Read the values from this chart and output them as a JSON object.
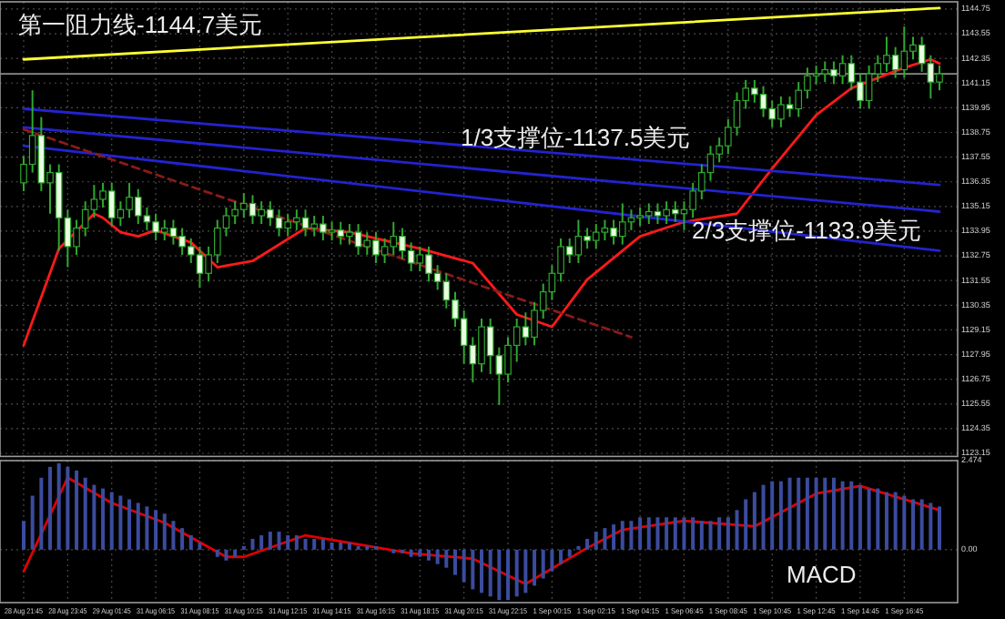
{
  "chart_data": [
    {
      "type": "candlestick",
      "color": "#2fa82f",
      "grid": true,
      "tick_labels": "y",
      "ylim": [
        1123.0,
        1145.1
      ],
      "yticks": [
        1123.15,
        1124.35,
        1125.55,
        1126.75,
        1127.95,
        1129.15,
        1130.35,
        1131.55,
        1132.75,
        1133.95,
        1135.15,
        1136.35,
        1137.55,
        1138.75,
        1139.95,
        1141.15,
        1142.35,
        1143.55,
        1144.75
      ],
      "ohlc": [
        [
          1136.3,
          1137.6,
          1135.9,
          1137.2
        ],
        [
          1137.2,
          1140.8,
          1136.8,
          1138.6
        ],
        [
          1138.6,
          1139.5,
          1135.9,
          1136.3
        ],
        [
          1136.3,
          1137.2,
          1134.8,
          1136.8
        ],
        [
          1136.8,
          1137.2,
          1133.0,
          1134.6
        ],
        [
          1134.6,
          1135.0,
          1132.2,
          1133.2
        ],
        [
          1133.2,
          1134.5,
          1132.8,
          1134.1
        ],
        [
          1134.1,
          1135.4,
          1133.7,
          1135.0
        ],
        [
          1135.0,
          1136.2,
          1134.6,
          1135.5
        ],
        [
          1135.5,
          1136.3,
          1135.1,
          1135.9
        ],
        [
          1135.9,
          1136.3,
          1134.2,
          1134.6
        ],
        [
          1134.6,
          1135.4,
          1134.2,
          1135.0
        ],
        [
          1135.0,
          1136.3,
          1134.6,
          1135.6
        ],
        [
          1135.6,
          1136.0,
          1134.3,
          1134.7
        ],
        [
          1134.7,
          1135.1,
          1134.0,
          1134.4
        ],
        [
          1134.4,
          1134.8,
          1133.5,
          1133.9
        ],
        [
          1133.9,
          1134.5,
          1133.5,
          1134.1
        ],
        [
          1134.1,
          1134.5,
          1133.3,
          1133.7
        ],
        [
          1133.7,
          1134.1,
          1132.8,
          1133.2
        ],
        [
          1133.2,
          1133.6,
          1132.4,
          1132.8
        ],
        [
          1132.8,
          1133.2,
          1131.2,
          1131.9
        ],
        [
          1131.9,
          1133.2,
          1131.5,
          1132.8
        ],
        [
          1132.8,
          1134.5,
          1132.4,
          1134.1
        ],
        [
          1134.1,
          1135.1,
          1133.7,
          1134.7
        ],
        [
          1134.7,
          1135.4,
          1134.3,
          1135.0
        ],
        [
          1135.0,
          1135.8,
          1134.6,
          1135.3
        ],
        [
          1135.3,
          1135.7,
          1134.3,
          1134.7
        ],
        [
          1134.7,
          1135.4,
          1134.3,
          1135.0
        ],
        [
          1135.0,
          1135.4,
          1134.2,
          1134.6
        ],
        [
          1134.6,
          1135.0,
          1133.7,
          1134.1
        ],
        [
          1134.1,
          1134.8,
          1133.7,
          1134.4
        ],
        [
          1134.4,
          1135.0,
          1134.0,
          1134.6
        ],
        [
          1134.6,
          1135.0,
          1133.7,
          1134.1
        ],
        [
          1134.1,
          1134.7,
          1133.7,
          1134.3
        ],
        [
          1134.3,
          1134.7,
          1133.5,
          1133.9
        ],
        [
          1133.9,
          1134.4,
          1133.5,
          1134.0
        ],
        [
          1134.0,
          1134.4,
          1133.3,
          1133.7
        ],
        [
          1133.7,
          1134.3,
          1133.3,
          1133.9
        ],
        [
          1133.9,
          1134.3,
          1132.8,
          1133.2
        ],
        [
          1133.2,
          1133.9,
          1132.8,
          1133.5
        ],
        [
          1133.5,
          1133.9,
          1132.4,
          1132.8
        ],
        [
          1132.8,
          1133.6,
          1132.4,
          1133.2
        ],
        [
          1133.2,
          1134.4,
          1132.8,
          1133.7
        ],
        [
          1133.7,
          1134.1,
          1132.6,
          1133.0
        ],
        [
          1133.0,
          1133.4,
          1132.0,
          1132.4
        ],
        [
          1132.4,
          1133.2,
          1132.0,
          1132.8
        ],
        [
          1132.8,
          1133.2,
          1131.5,
          1131.9
        ],
        [
          1131.9,
          1132.3,
          1131.1,
          1131.5
        ],
        [
          1131.5,
          1131.9,
          1130.2,
          1130.6
        ],
        [
          1130.6,
          1131.0,
          1129.3,
          1129.7
        ],
        [
          1129.7,
          1130.1,
          1127.5,
          1128.4
        ],
        [
          1128.4,
          1128.8,
          1126.6,
          1127.5
        ],
        [
          1127.5,
          1129.7,
          1127.1,
          1129.3
        ],
        [
          1129.3,
          1129.7,
          1127.0,
          1127.9
        ],
        [
          1127.9,
          1128.3,
          1125.5,
          1127.0
        ],
        [
          1127.0,
          1128.8,
          1126.6,
          1128.4
        ],
        [
          1128.4,
          1129.7,
          1127.6,
          1129.3
        ],
        [
          1129.3,
          1130.0,
          1128.4,
          1128.8
        ],
        [
          1128.8,
          1130.5,
          1128.4,
          1130.1
        ],
        [
          1130.1,
          1131.4,
          1129.7,
          1131.0
        ],
        [
          1131.0,
          1132.3,
          1130.6,
          1131.9
        ],
        [
          1131.9,
          1133.6,
          1131.5,
          1133.2
        ],
        [
          1133.2,
          1133.6,
          1132.4,
          1132.8
        ],
        [
          1132.8,
          1134.5,
          1132.4,
          1133.7
        ],
        [
          1133.7,
          1134.1,
          1133.1,
          1133.5
        ],
        [
          1133.5,
          1134.3,
          1133.1,
          1133.9
        ],
        [
          1133.9,
          1134.5,
          1133.5,
          1134.1
        ],
        [
          1134.1,
          1134.5,
          1133.3,
          1133.7
        ],
        [
          1133.7,
          1135.3,
          1133.3,
          1134.4
        ],
        [
          1134.4,
          1135.0,
          1134.0,
          1134.6
        ],
        [
          1134.6,
          1135.1,
          1134.2,
          1134.7
        ],
        [
          1134.7,
          1135.3,
          1134.3,
          1134.9
        ],
        [
          1134.9,
          1135.3,
          1134.3,
          1134.7
        ],
        [
          1134.7,
          1135.4,
          1134.3,
          1135.0
        ],
        [
          1135.0,
          1135.4,
          1134.4,
          1134.8
        ],
        [
          1134.8,
          1135.4,
          1134.0,
          1135.0
        ],
        [
          1135.0,
          1136.3,
          1134.6,
          1135.9
        ],
        [
          1135.9,
          1137.2,
          1135.5,
          1136.8
        ],
        [
          1136.8,
          1138.1,
          1136.4,
          1137.7
        ],
        [
          1137.7,
          1138.5,
          1137.3,
          1138.1
        ],
        [
          1138.1,
          1139.4,
          1137.7,
          1139.0
        ],
        [
          1139.0,
          1140.7,
          1138.6,
          1140.3
        ],
        [
          1140.3,
          1141.3,
          1139.9,
          1140.9
        ],
        [
          1140.9,
          1141.3,
          1140.2,
          1140.6
        ],
        [
          1140.6,
          1141.0,
          1139.5,
          1139.9
        ],
        [
          1139.9,
          1140.3,
          1139.0,
          1139.4
        ],
        [
          1139.4,
          1140.5,
          1139.0,
          1140.1
        ],
        [
          1140.1,
          1140.5,
          1139.5,
          1139.9
        ],
        [
          1139.9,
          1141.2,
          1139.5,
          1140.8
        ],
        [
          1140.8,
          1141.9,
          1140.4,
          1141.5
        ],
        [
          1141.5,
          1142.0,
          1141.1,
          1141.6
        ],
        [
          1141.6,
          1142.2,
          1141.2,
          1141.8
        ],
        [
          1141.8,
          1142.2,
          1141.1,
          1141.5
        ],
        [
          1141.5,
          1142.5,
          1141.1,
          1142.1
        ],
        [
          1142.1,
          1142.5,
          1140.8,
          1141.2
        ],
        [
          1141.2,
          1141.6,
          1139.9,
          1140.3
        ],
        [
          1140.3,
          1142.0,
          1139.9,
          1141.6
        ],
        [
          1141.6,
          1142.5,
          1141.2,
          1142.1
        ],
        [
          1142.1,
          1143.4,
          1141.7,
          1142.5
        ],
        [
          1142.5,
          1142.9,
          1141.4,
          1141.8
        ],
        [
          1141.8,
          1143.9,
          1141.4,
          1142.7
        ],
        [
          1142.7,
          1143.4,
          1142.3,
          1143.0
        ],
        [
          1143.0,
          1143.4,
          1141.7,
          1142.1
        ],
        [
          1142.1,
          1142.5,
          1140.4,
          1141.2
        ],
        [
          1141.2,
          1142.0,
          1140.8,
          1141.6
        ]
      ],
      "series": [
        {
          "type": "line",
          "color": "#ff1a1a",
          "values": [
            1128.4,
            null,
            null,
            null,
            1133.1,
            null,
            null,
            null,
            1134.8,
            1134.6,
            null,
            1133.9,
            null,
            1133.7,
            null,
            1134.0,
            null,
            null,
            null,
            1133.4,
            null,
            null,
            1132.2,
            null,
            null,
            null,
            1132.5,
            null,
            null,
            null,
            null,
            null,
            1134.1,
            null,
            null,
            null,
            null,
            1133.9,
            null,
            null,
            null,
            null,
            null,
            null,
            null,
            1133.1,
            null,
            null,
            null,
            null,
            null,
            1132.4,
            null,
            null,
            null,
            null,
            1129.9,
            null,
            null,
            null,
            1129.3,
            null,
            null,
            null,
            1131.6,
            null,
            null,
            null,
            null,
            null,
            1133.7,
            null,
            null,
            null,
            null,
            1134.4,
            null,
            null,
            null,
            null,
            null,
            1134.8,
            null,
            null,
            null,
            1137.0,
            null,
            null,
            null,
            null,
            1139.6,
            null,
            null,
            null,
            1140.9,
            null,
            null,
            null,
            null,
            null,
            1141.9,
            null,
            null,
            1142.3,
            1142.1
          ]
        },
        {
          "type": "line",
          "color": "#ffff33",
          "values": [
            1142.3,
            null,
            null,
            null,
            null,
            null,
            null,
            null,
            null,
            null,
            null,
            null,
            null,
            null,
            null,
            null,
            null,
            null,
            null,
            null,
            null,
            null,
            null,
            null,
            null,
            null,
            null,
            null,
            null,
            null,
            null,
            null,
            null,
            null,
            null,
            null,
            null,
            null,
            null,
            null,
            null,
            null,
            null,
            null,
            null,
            null,
            null,
            null,
            null,
            null,
            null,
            null,
            null,
            null,
            null,
            null,
            null,
            null,
            null,
            null,
            null,
            null,
            null,
            null,
            null,
            null,
            null,
            null,
            null,
            null,
            null,
            null,
            null,
            null,
            null,
            null,
            null,
            null,
            null,
            null,
            null,
            null,
            null,
            null,
            null,
            null,
            null,
            null,
            null,
            null,
            null,
            null,
            null,
            null,
            null,
            null,
            null,
            null,
            null,
            null,
            null,
            null,
            null,
            null,
            1144.8
          ]
        },
        {
          "type": "line",
          "color": "#2323d0",
          "values": [
            1139.9,
            null,
            null,
            null,
            null,
            null,
            null,
            null,
            null,
            null,
            null,
            null,
            null,
            null,
            null,
            null,
            null,
            null,
            null,
            null,
            null,
            null,
            null,
            null,
            null,
            null,
            null,
            null,
            null,
            null,
            null,
            null,
            null,
            null,
            null,
            null,
            null,
            null,
            null,
            null,
            null,
            null,
            null,
            null,
            null,
            null,
            null,
            null,
            null,
            null,
            null,
            null,
            null,
            null,
            null,
            null,
            null,
            null,
            null,
            null,
            null,
            null,
            null,
            null,
            null,
            null,
            null,
            null,
            null,
            null,
            null,
            null,
            null,
            null,
            null,
            null,
            null,
            null,
            null,
            null,
            null,
            null,
            null,
            null,
            null,
            null,
            null,
            null,
            null,
            null,
            null,
            null,
            null,
            null,
            null,
            null,
            null,
            null,
            null,
            null,
            null,
            null,
            null,
            null,
            1136.2
          ]
        },
        {
          "type": "line",
          "color": "#2323d0",
          "values": [
            1139.0,
            null,
            null,
            null,
            null,
            null,
            null,
            null,
            null,
            null,
            null,
            null,
            null,
            null,
            null,
            null,
            null,
            null,
            null,
            null,
            null,
            null,
            null,
            null,
            null,
            null,
            null,
            null,
            null,
            null,
            null,
            null,
            null,
            null,
            null,
            null,
            null,
            null,
            null,
            null,
            null,
            null,
            null,
            null,
            null,
            null,
            null,
            null,
            null,
            null,
            null,
            null,
            null,
            null,
            null,
            null,
            null,
            null,
            null,
            null,
            null,
            null,
            null,
            null,
            null,
            null,
            null,
            null,
            null,
            null,
            null,
            null,
            null,
            null,
            null,
            null,
            null,
            null,
            null,
            null,
            null,
            null,
            null,
            null,
            null,
            null,
            null,
            null,
            null,
            null,
            null,
            null,
            null,
            null,
            null,
            null,
            null,
            null,
            null,
            null,
            null,
            null,
            null,
            null,
            1134.9
          ]
        },
        {
          "type": "line",
          "color": "#2323d0",
          "values": [
            1138.1,
            null,
            null,
            null,
            null,
            null,
            null,
            null,
            null,
            null,
            null,
            null,
            null,
            null,
            null,
            null,
            null,
            null,
            null,
            null,
            null,
            null,
            null,
            null,
            null,
            null,
            null,
            null,
            null,
            null,
            null,
            null,
            null,
            null,
            null,
            null,
            null,
            null,
            null,
            null,
            null,
            null,
            null,
            null,
            null,
            null,
            null,
            null,
            null,
            null,
            null,
            null,
            null,
            null,
            null,
            null,
            null,
            null,
            null,
            null,
            null,
            null,
            null,
            null,
            null,
            null,
            null,
            null,
            null,
            null,
            null,
            null,
            null,
            null,
            null,
            null,
            null,
            null,
            null,
            null,
            null,
            null,
            null,
            null,
            null,
            null,
            null,
            null,
            null,
            null,
            null,
            null,
            null,
            null,
            null,
            null,
            null,
            null,
            null,
            null,
            null,
            null,
            null,
            null,
            1133.0
          ]
        },
        {
          "type": "line",
          "color": "#8b1a1a",
          "line_style": "dashed",
          "values": [
            1138.9,
            null,
            null,
            null,
            null,
            null,
            null,
            null,
            null,
            null,
            null,
            null,
            null,
            null,
            null,
            null,
            null,
            null,
            null,
            null,
            null,
            null,
            null,
            null,
            null,
            null,
            null,
            null,
            null,
            null,
            null,
            null,
            null,
            null,
            null,
            null,
            null,
            null,
            null,
            null,
            null,
            null,
            null,
            null,
            null,
            null,
            null,
            null,
            null,
            null,
            null,
            null,
            null,
            null,
            null,
            null,
            null,
            null,
            null,
            null,
            null,
            null,
            null,
            null,
            null,
            null,
            null,
            null,
            null,
            1128.8,
            null,
            null,
            null,
            null,
            null,
            null,
            null,
            null,
            null,
            null,
            null,
            null,
            null,
            null,
            null,
            null,
            null,
            null,
            null,
            null,
            null,
            null,
            null,
            null,
            null,
            null,
            null,
            null,
            null,
            null,
            null,
            null,
            null,
            null,
            null
          ]
        }
      ],
      "ref_lines": [
        {
          "axis": "y",
          "value": 1141.6,
          "color": "#8a8a8a"
        }
      ],
      "annotations": [
        "第一阻力线-1144.7美元",
        "1/3支撑位-1137.5美元",
        "2/3支撑位-1133.9美元"
      ]
    },
    {
      "type": "bar",
      "grid": true,
      "ylim": [
        -1.47,
        2.474
      ],
      "categories": [
        "28 Aug 21:45",
        null,
        null,
        null,
        null,
        "28 Aug 23:45",
        null,
        null,
        null,
        null,
        "29 Aug 01:45",
        null,
        null,
        null,
        null,
        "31 Aug 06:15",
        null,
        null,
        null,
        null,
        "31 Aug 08:15",
        null,
        null,
        null,
        null,
        "31 Aug 10:15",
        null,
        null,
        null,
        null,
        "31 Aug 12:15",
        null,
        null,
        null,
        null,
        "31 Aug 14:15",
        null,
        null,
        null,
        null,
        "31 Aug 16:15",
        null,
        null,
        null,
        null,
        "31 Aug 18:15",
        null,
        null,
        null,
        null,
        "31 Aug 20:15",
        null,
        null,
        null,
        null,
        "31 Aug 22:15",
        null,
        null,
        null,
        null,
        "1 Sep 00:15",
        null,
        null,
        null,
        null,
        "1 Sep 02:15",
        null,
        null,
        null,
        null,
        "1 Sep 04:15",
        null,
        null,
        null,
        null,
        "1 Sep 06:45",
        null,
        null,
        null,
        null,
        "1 Sep 08:45",
        null,
        null,
        null,
        null,
        "1 Sep 10:45",
        null,
        null,
        null,
        null,
        "1 Sep 12:45",
        null,
        null,
        null,
        null,
        "1 Sep 14:45",
        null,
        null,
        null,
        null,
        "1 Sep 16:45",
        null,
        null,
        null,
        null
      ],
      "yticks": [
        2.474,
        {
          "value": 0,
          "label": "0.00"
        }
      ],
      "series": [
        {
          "type": "bar",
          "color": "#3b4c9e",
          "values": [
            0.8,
            1.5,
            2.0,
            2.3,
            2.4,
            2.3,
            2.2,
            2.0,
            1.8,
            1.7,
            1.6,
            1.5,
            1.4,
            1.3,
            1.2,
            1.1,
            1.0,
            0.8,
            0.6,
            0.4,
            0.2,
            0.0,
            -0.2,
            -0.3,
            -0.2,
            0.1,
            0.3,
            0.4,
            0.5,
            0.5,
            0.4,
            0.4,
            0.3,
            0.3,
            0.3,
            0.2,
            0.2,
            0.2,
            0.1,
            0.1,
            0.1,
            0.0,
            -0.1,
            -0.1,
            -0.2,
            -0.2,
            -0.3,
            -0.4,
            -0.5,
            -0.7,
            -0.9,
            -1.1,
            -1.2,
            -1.3,
            -1.4,
            -1.4,
            -1.3,
            -1.2,
            -1.0,
            -0.8,
            -0.6,
            -0.4,
            -0.2,
            0.1,
            0.3,
            0.5,
            0.6,
            0.7,
            0.8,
            0.8,
            0.9,
            0.9,
            0.9,
            0.9,
            0.9,
            0.9,
            0.9,
            0.8,
            0.8,
            0.9,
            0.9,
            1.1,
            1.4,
            1.6,
            1.8,
            1.9,
            1.9,
            2.0,
            2.0,
            2.0,
            2.0,
            2.0,
            2.0,
            1.9,
            1.9,
            1.8,
            1.7,
            1.7,
            1.6,
            1.6,
            1.5,
            1.4,
            1.4,
            1.3,
            1.2
          ]
        },
        {
          "type": "line",
          "color": "#e00000",
          "values": [
            -0.6,
            null,
            null,
            null,
            null,
            2.0,
            null,
            null,
            null,
            null,
            1.3,
            null,
            null,
            null,
            null,
            null,
            0.75,
            null,
            null,
            null,
            null,
            null,
            null,
            -0.2,
            null,
            -0.2,
            null,
            null,
            null,
            null,
            null,
            null,
            0.4,
            null,
            null,
            null,
            null,
            null,
            null,
            null,
            null,
            null,
            null,
            null,
            -0.1,
            null,
            null,
            null,
            null,
            null,
            null,
            -0.25,
            null,
            null,
            null,
            null,
            null,
            -0.95,
            null,
            null,
            null,
            null,
            null,
            null,
            0.05,
            null,
            null,
            null,
            0.55,
            null,
            null,
            null,
            null,
            null,
            null,
            0.8,
            null,
            null,
            null,
            null,
            null,
            null,
            null,
            0.65,
            null,
            null,
            null,
            null,
            null,
            null,
            1.56,
            null,
            null,
            null,
            null,
            1.77,
            null,
            null,
            null,
            null,
            null,
            null,
            null,
            null,
            1.1
          ]
        }
      ],
      "annotations": [
        "MACD"
      ]
    }
  ]
}
